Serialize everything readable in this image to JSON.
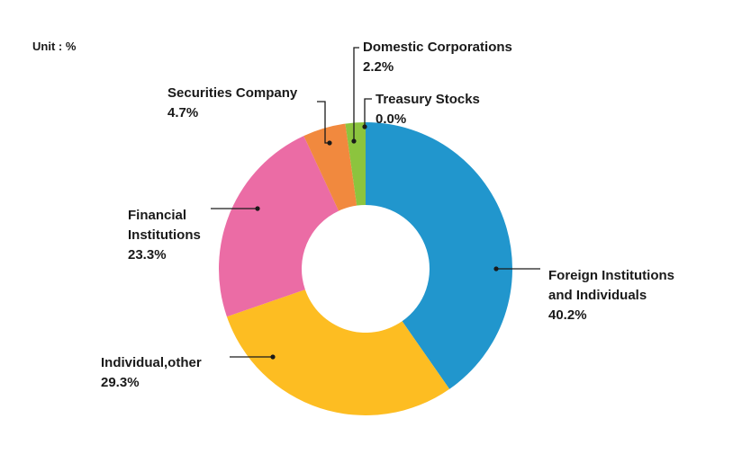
{
  "unit_label": "Unit : %",
  "chart_data": {
    "type": "pie",
    "donut": true,
    "start_angle_deg": 0,
    "direction": "clockwise",
    "slices": [
      {
        "label": "Foreign Institutions and Individuals",
        "label_lines": [
          "Foreign Institutions",
          "and Individuals"
        ],
        "value_label": "40.2%",
        "value": 40.2,
        "color": "#2196cd"
      },
      {
        "label": "Individual,other",
        "label_lines": [
          "Individual,other"
        ],
        "value_label": "29.3%",
        "value": 29.3,
        "color": "#fdbd22"
      },
      {
        "label": "Financial Institutions",
        "label_lines": [
          "Financial",
          "Institutions"
        ],
        "value_label": "23.3%",
        "value": 23.3,
        "color": "#eb6ca5"
      },
      {
        "label": "Securities Company",
        "label_lines": [
          "Securities Company"
        ],
        "value_label": "4.7%",
        "value": 4.7,
        "color": "#f1893e"
      },
      {
        "label": "Domestic Corporations",
        "label_lines": [
          "Domestic Corporations"
        ],
        "value_label": "2.2%",
        "value": 2.2,
        "color": "#8cc43e"
      },
      {
        "label": "Treasury Stocks",
        "label_lines": [
          "Treasury Stocks"
        ],
        "value_label": "0.0%",
        "value": 0.0,
        "color": "#2196cd"
      }
    ]
  }
}
